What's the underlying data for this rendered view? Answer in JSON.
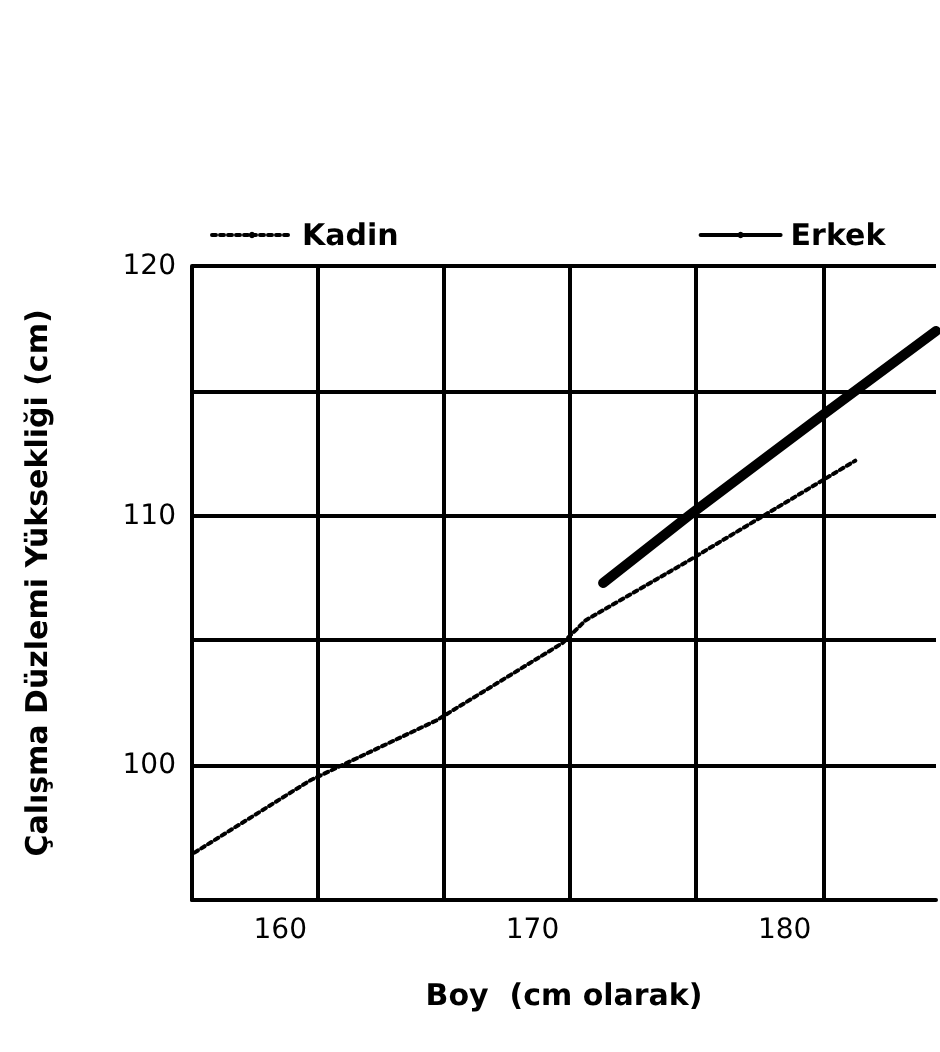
{
  "chart_data": {
    "type": "line",
    "xlabel": "Boy  (cm olarak)",
    "ylabel": "Çalışma Düzlemi Yüksekliği (cm)",
    "xlim": [
      156.5,
      186
    ],
    "xticks": [
      160,
      170,
      180
    ],
    "ylim": [
      94.6,
      120
    ],
    "yticks": [
      100,
      {
        "value": 105,
        "label": null
      },
      110,
      {
        "value": 115,
        "label": null
      },
      120
    ],
    "grid": "y",
    "legend": "top",
    "marker": "none",
    "ref_lines": [
      {
        "axis": "x",
        "value": 161.5,
        "color": "#000000"
      },
      {
        "axis": "x",
        "value": 166.5,
        "color": "#000000"
      },
      {
        "axis": "x",
        "value": 171.5,
        "color": "#000000"
      },
      {
        "axis": "x",
        "value": 176.5,
        "color": "#000000"
      },
      {
        "axis": "x",
        "value": 181.5,
        "color": "#000000"
      }
    ],
    "series": [
      {
        "name": "Kadin",
        "color": "#000000",
        "line_style": "dotted",
        "x": [
          156.6,
          161.2,
          166.2,
          171.2,
          172.1,
          176.2,
          182.8
        ],
        "values": [
          96.5,
          99.4,
          101.8,
          104.9,
          105.8,
          108.2,
          112.2
        ]
      },
      {
        "name": "Erkek",
        "color": "#000000",
        "line_style": "solid",
        "x": [
          172.8,
          176.2,
          181.2,
          186
        ],
        "values": [
          107.3,
          110,
          113.8,
          117.4
        ]
      }
    ]
  }
}
